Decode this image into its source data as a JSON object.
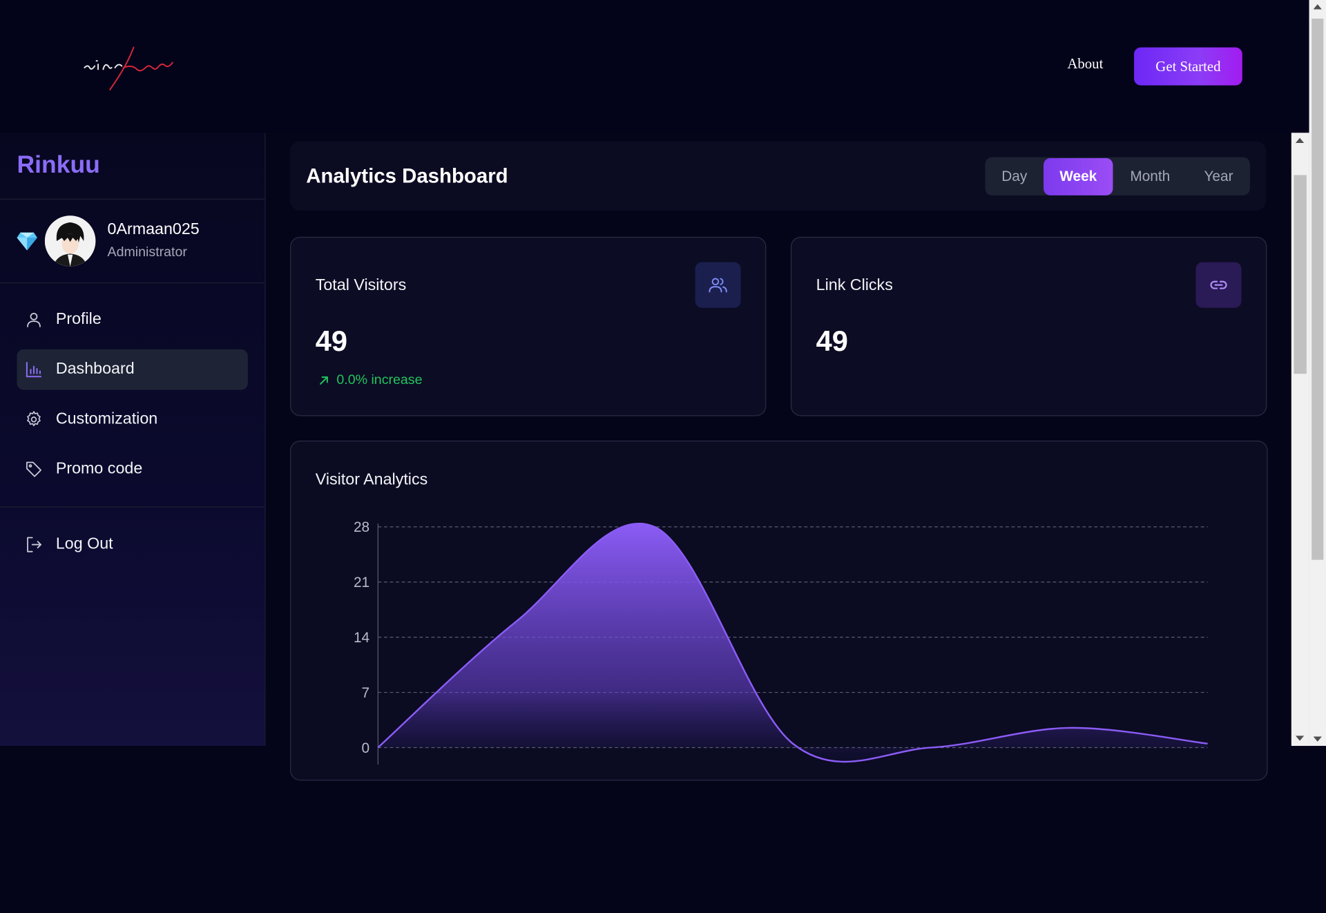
{
  "topbar": {
    "about_label": "About",
    "cta_label": "Get Started"
  },
  "sidebar": {
    "brand": "Rinkuu",
    "user": {
      "name": "0Armaan025",
      "role": "Administrator"
    },
    "items": [
      {
        "label": "Profile",
        "icon": "user-icon",
        "active": false
      },
      {
        "label": "Dashboard",
        "icon": "bar-chart-icon",
        "active": true
      },
      {
        "label": "Customization",
        "icon": "gear-icon",
        "active": false
      },
      {
        "label": "Promo code",
        "icon": "tag-icon",
        "active": false
      }
    ],
    "logout_label": "Log Out"
  },
  "header": {
    "title": "Analytics Dashboard",
    "ranges": [
      "Day",
      "Week",
      "Month",
      "Year"
    ],
    "active_range": "Week"
  },
  "stats": {
    "visitors": {
      "title": "Total Visitors",
      "value": "49",
      "change": "0.0% increase"
    },
    "clicks": {
      "title": "Link Clicks",
      "value": "49"
    }
  },
  "colors": {
    "accent": "#8b5cf6",
    "positive": "#22c55e",
    "background": "#05051a"
  },
  "chart_data": {
    "type": "area",
    "title": "Visitor Analytics",
    "y_ticks": [
      28,
      21,
      14,
      7,
      0
    ],
    "ylim": [
      0,
      28
    ],
    "values": [
      0,
      16,
      28,
      0.5,
      0,
      2.5,
      0.5
    ],
    "grid": true,
    "color": "#8b5cf6"
  }
}
